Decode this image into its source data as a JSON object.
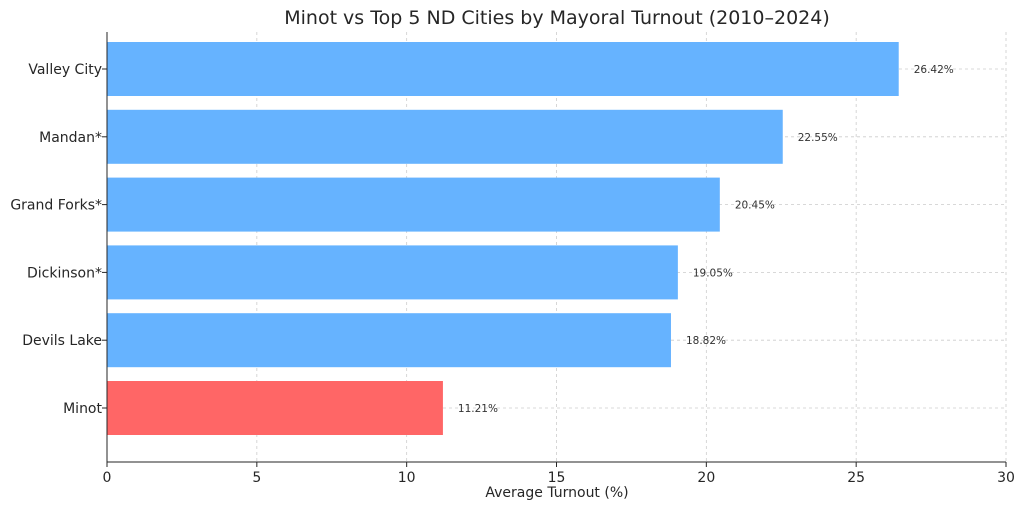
{
  "chart_data": {
    "type": "bar",
    "orientation": "horizontal",
    "title": "Minot vs Top 5 ND Cities by Mayoral Turnout (2010–2024)",
    "xlabel": "Average Turnout (%)",
    "ylabel": "",
    "xlim": [
      0,
      30
    ],
    "xticks": [
      0,
      5,
      10,
      15,
      20,
      25,
      30
    ],
    "grid": true,
    "categories": [
      "Valley City",
      "Mandan*",
      "Grand Forks*",
      "Dickinson*",
      "Devils Lake",
      "Minot"
    ],
    "values": [
      26.42,
      22.55,
      20.45,
      19.05,
      18.82,
      11.21
    ],
    "data_labels": [
      "26.42%",
      "22.55%",
      "20.45%",
      "19.05%",
      "18.82%",
      "11.21%"
    ],
    "colors": [
      "#66b3ff",
      "#66b3ff",
      "#66b3ff",
      "#66b3ff",
      "#66b3ff",
      "#ff6666"
    ]
  }
}
